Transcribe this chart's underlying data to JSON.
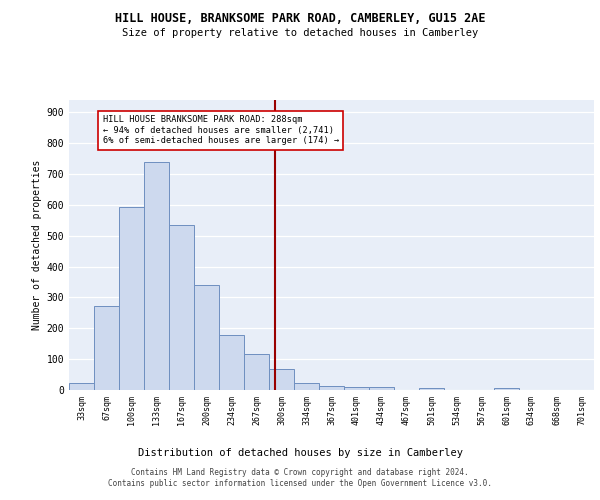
{
  "title": "HILL HOUSE, BRANKSOME PARK ROAD, CAMBERLEY, GU15 2AE",
  "subtitle": "Size of property relative to detached houses in Camberley",
  "xlabel": "Distribution of detached houses by size in Camberley",
  "ylabel": "Number of detached properties",
  "bar_fill_color": "#cdd9ee",
  "bar_edge_color": "#6e8fc0",
  "background_color": "#e8eef8",
  "tick_labels": [
    "33sqm",
    "67sqm",
    "100sqm",
    "133sqm",
    "167sqm",
    "200sqm",
    "234sqm",
    "267sqm",
    "300sqm",
    "334sqm",
    "367sqm",
    "401sqm",
    "434sqm",
    "467sqm",
    "501sqm",
    "534sqm",
    "567sqm",
    "601sqm",
    "634sqm",
    "668sqm",
    "701sqm"
  ],
  "bar_heights": [
    22,
    272,
    594,
    740,
    535,
    340,
    178,
    118,
    68,
    22,
    12,
    10,
    9,
    0,
    8,
    0,
    0,
    8,
    0,
    0,
    0
  ],
  "vline_x_index": 7.72,
  "vline_color": "#990000",
  "annotation_line0": "HILL HOUSE BRANKSOME PARK ROAD: 288sqm",
  "annotation_line1": "← 94% of detached houses are smaller (2,741)",
  "annotation_line2": "6% of semi-detached houses are larger (174) →",
  "ylim": [
    0,
    940
  ],
  "yticks": [
    0,
    100,
    200,
    300,
    400,
    500,
    600,
    700,
    800,
    900
  ],
  "footer1": "Contains HM Land Registry data © Crown copyright and database right 2024.",
  "footer2": "Contains public sector information licensed under the Open Government Licence v3.0."
}
